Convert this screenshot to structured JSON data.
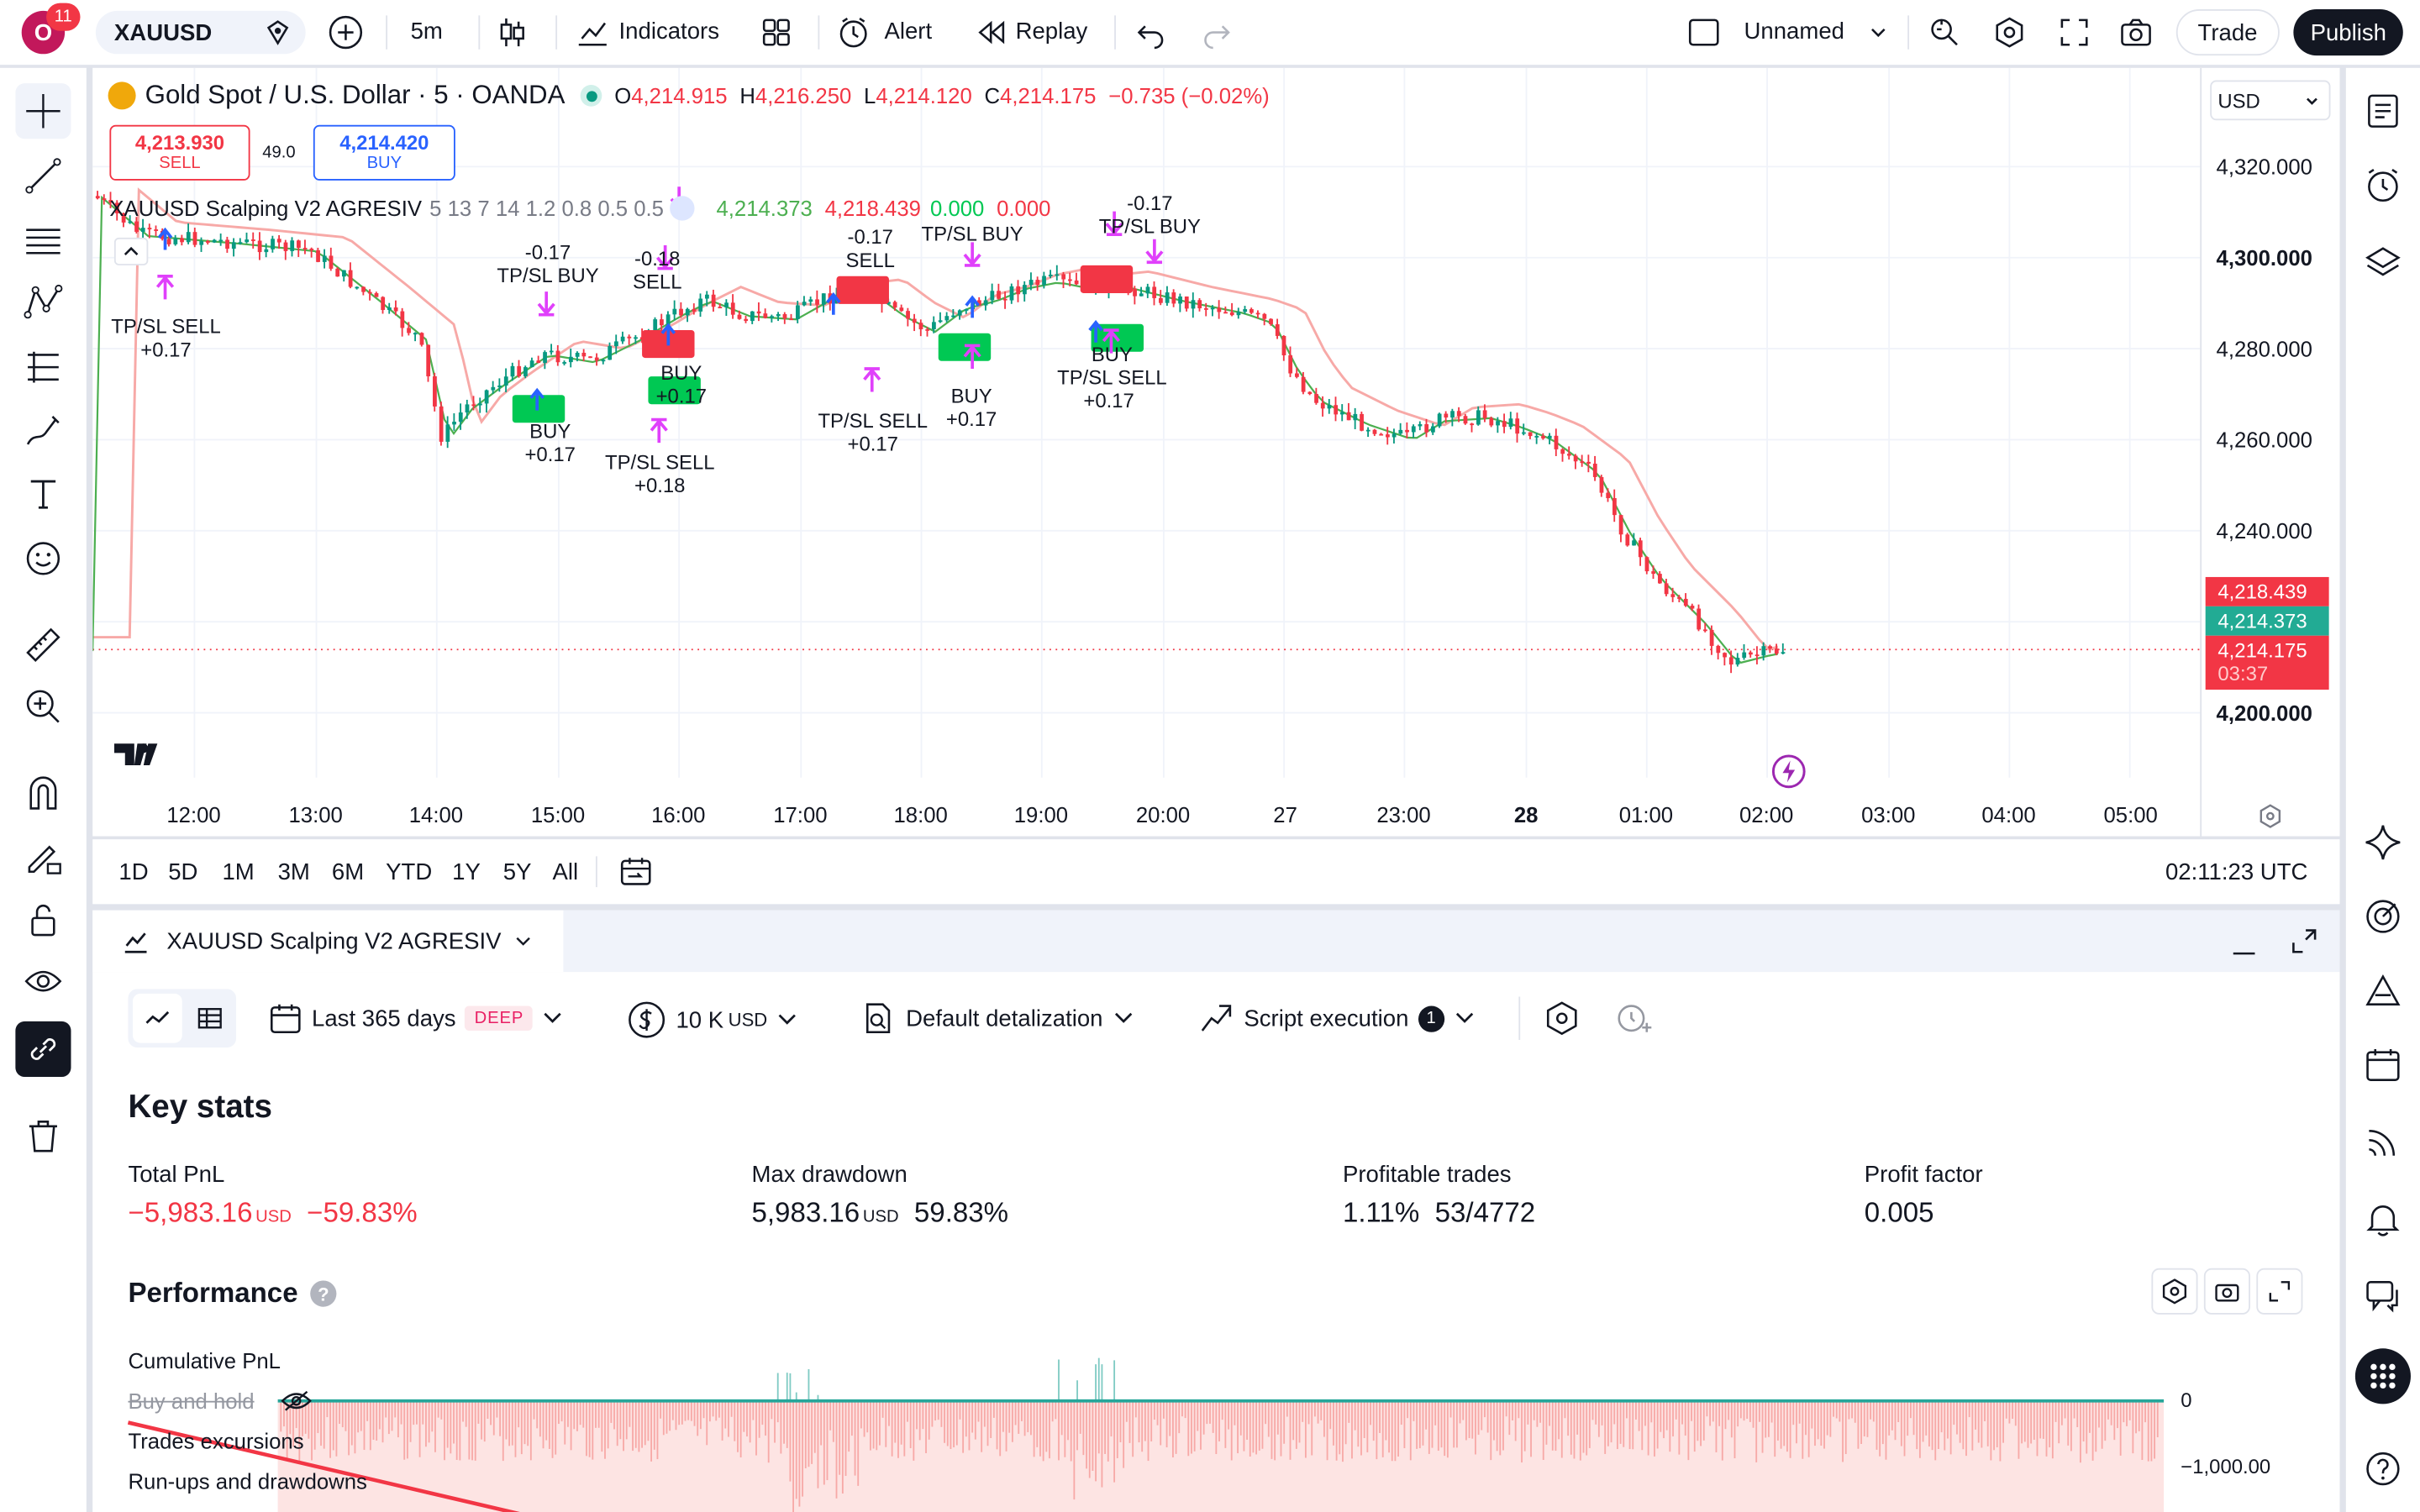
{
  "topbar": {
    "notif_count": "11",
    "symbol": "XAUUSD",
    "interval": "5m",
    "indicators": "Indicators",
    "alert": "Alert",
    "replay": "Replay",
    "layout_name": "Unnamed",
    "trade": "Trade",
    "publish": "Publish"
  },
  "legend": {
    "title": "Gold Spot / U.S. Dollar · 5 · OANDA",
    "o_label": "O",
    "o": "4,214.915",
    "h_label": "H",
    "h": "4,216.250",
    "l_label": "L",
    "l": "4,214.120",
    "c_label": "C",
    "c": "4,214.175",
    "chg": "−0.735 (−0.02%)",
    "sell_price": "4,213.930",
    "sell": "SELL",
    "spread": "49.0",
    "buy_price": "4,214.420",
    "buy": "BUY",
    "indicator": "XAUUSD Scalping V2 AGRESIV",
    "ind_params": "5 13 7 14 1.2 0.8 0.5 0.5",
    "ind_v1": "4,214.373",
    "ind_v2": "4,218.439",
    "ind_v3": "0.000",
    "ind_v4": "0.000"
  },
  "currency": "USD",
  "price_axis": [
    "4,320.000",
    "4,300.000",
    "4,280.000",
    "4,260.000",
    "4,240.000",
    "4,200.000"
  ],
  "price_tags": {
    "upper": "4,218.439",
    "ema": "4,214.373",
    "last": "4,214.175",
    "countdown": "03:37"
  },
  "time_axis": [
    "12:00",
    "13:00",
    "14:00",
    "15:00",
    "16:00",
    "17:00",
    "18:00",
    "19:00",
    "20:00",
    "27",
    "23:00",
    "28",
    "01:00",
    "02:00",
    "03:00",
    "04:00",
    "05:00"
  ],
  "trade_labels": [
    {
      "a": "TP/SL SELL",
      "b": "+0.17"
    },
    {
      "a": "-0.17",
      "b": "TP/SL BUY"
    },
    {
      "a": "BUY",
      "b": "+0.17"
    },
    {
      "a": "-0.17",
      "b": "TP/SL BUY"
    },
    {
      "a": "-0.18",
      "b": "SELL"
    },
    {
      "a": "BUY",
      "b": "+0.17"
    },
    {
      "a": "TP/SL SELL",
      "b": "+0.18"
    },
    {
      "a": "-0.17",
      "b": "SELL"
    },
    {
      "a": "TP/SL SELL",
      "b": "+0.17"
    },
    {
      "a": "TP/SL BUY",
      "b": ""
    },
    {
      "a": "BUY",
      "b": "+0.17"
    },
    {
      "a": "-0.17",
      "b": "TP/SL BUY"
    },
    {
      "a": "BUY",
      "b": "TP/SL SELL"
    },
    {
      "a": "+0.17",
      "b": ""
    }
  ],
  "range_buttons": [
    "1D",
    "5D",
    "1M",
    "3M",
    "6M",
    "YTD",
    "1Y",
    "5Y",
    "All"
  ],
  "clock": "02:11:23 UTC",
  "panel": {
    "tab_title": "XAUUSD Scalping V2 AGRESIV",
    "period": "Last 365 days",
    "deep": "DEEP",
    "capital": "10 K",
    "capital_unit": "USD",
    "detalization": "Default detalization",
    "execution": "Script execution",
    "execution_count": "1",
    "key_stats": "Key stats",
    "stats": [
      {
        "label": "Total PnL",
        "value": "−5,983.16",
        "unit": "USD",
        "pct": "−59.83%",
        "negative": true
      },
      {
        "label": "Max drawdown",
        "value": "5,983.16",
        "unit": "USD",
        "pct": "59.83%",
        "negative": false
      },
      {
        "label": "Profitable trades",
        "value": "1.11%",
        "unit": "",
        "pct": "53/4772",
        "negative": false
      },
      {
        "label": "Profit factor",
        "value": "0.005",
        "unit": "",
        "pct": "",
        "negative": false
      }
    ],
    "performance": "Performance",
    "perf_legend": [
      "Cumulative PnL",
      "Buy and hold",
      "Trades excursions",
      "Run-ups and drawdowns"
    ],
    "perf_axis": [
      "0",
      "−1,000.00"
    ]
  },
  "colors": {
    "up": "#089981",
    "down": "#f23645",
    "ema": "#f7a9a7",
    "fast": "#4caf50",
    "blue": "#2962ff",
    "magenta": "#e040fb"
  }
}
